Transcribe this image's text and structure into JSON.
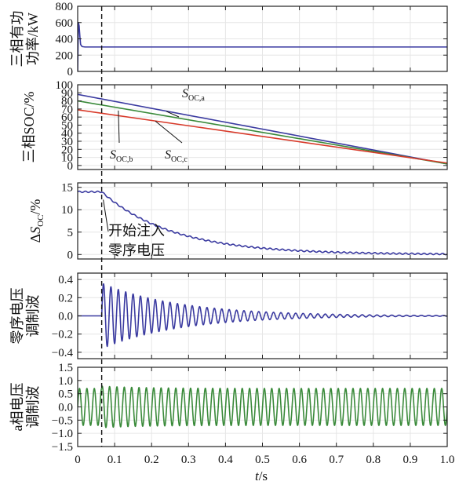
{
  "chart_data": [
    {
      "type": "line",
      "ylabel_lines": [
        "三相有功",
        "功率/kW"
      ],
      "xlim": [
        0,
        1
      ],
      "ylim": [
        0,
        800
      ],
      "yticks": [
        0,
        200,
        400,
        600,
        800
      ],
      "grid": true,
      "series": [
        {
          "color": "#3a3aa0",
          "x": [
            0,
            0.002,
            0.004,
            0.006,
            0.008,
            0.012,
            0.02,
            1.0
          ],
          "y": [
            0,
            600,
            560,
            430,
            330,
            305,
            300,
            300
          ]
        }
      ]
    },
    {
      "type": "line",
      "ylabel_lines": [
        "三相SOC/%"
      ],
      "xlim": [
        0,
        1
      ],
      "ylim": [
        -5,
        100
      ],
      "yticks": [
        0,
        10,
        20,
        30,
        40,
        50,
        60,
        70,
        80,
        90,
        100
      ],
      "grid": true,
      "series": [
        {
          "name": "S_OC,a",
          "color": "#3a3aa0",
          "x": [
            0,
            1
          ],
          "y": [
            88,
            2
          ]
        },
        {
          "name": "S_OC,b",
          "color": "#3a8a3a",
          "x": [
            0,
            1
          ],
          "y": [
            80,
            2
          ]
        },
        {
          "name": "S_OC,c",
          "color": "#d83a2a",
          "x": [
            0,
            1
          ],
          "y": [
            69,
            3
          ]
        }
      ],
      "annotations": [
        {
          "base": "S",
          "sub": "OC,a",
          "target_x": 0.24,
          "target_y": 67
        },
        {
          "base": "S",
          "sub": "OC,b",
          "target_x": 0.11,
          "target_y": 68
        },
        {
          "base": "S",
          "sub": "OC,c",
          "target_x": 0.21,
          "target_y": 55
        }
      ]
    },
    {
      "type": "line",
      "ylabel_lines": [
        "ΔSOC/%"
      ],
      "ylabel_parts": {
        "prefix": "Δ",
        "base": "S",
        "sub": "OC",
        "suffix": "/%"
      },
      "xlim": [
        0,
        1
      ],
      "ylim": [
        -1,
        16
      ],
      "yticks": [
        0,
        5,
        10,
        15
      ],
      "grid": true,
      "series": [
        {
          "color": "#3a3aa0",
          "inject_t": 0.065,
          "pre_level": 14,
          "decay_tau": 0.19,
          "final": 0,
          "ripple_amp": 0.15,
          "freq_hz": 60
        }
      ],
      "annotation_lines": [
        "开始注入",
        "零序电压"
      ]
    },
    {
      "type": "line",
      "ylabel_lines": [
        "零序电压",
        "调制波"
      ],
      "xlim": [
        0,
        1
      ],
      "ylim": [
        -0.47,
        0.47
      ],
      "yticks": [
        -0.4,
        -0.2,
        0,
        0.2,
        0.4
      ],
      "grid": true,
      "series": [
        {
          "color": "#3a3aa0",
          "inject_t": 0.065,
          "amp0": 0.36,
          "decay_tau": 0.21,
          "freq_hz": 50
        }
      ]
    },
    {
      "type": "line",
      "ylabel_lines": [
        "a相电压",
        "调制波"
      ],
      "xlim": [
        0,
        1
      ],
      "ylim": [
        -1.5,
        1.5
      ],
      "yticks": [
        -1.5,
        -1.0,
        -0.5,
        0,
        0.5,
        1.0,
        1.5
      ],
      "grid": true,
      "series": [
        {
          "color": "#3a8a3a",
          "inject_t": 0.065,
          "base_amp": 0.7,
          "extra_amp": 0.36,
          "decay_tau": 0.21,
          "freq_hz": 50
        }
      ]
    }
  ],
  "x_axis": {
    "label_italic": "t",
    "label_rest": "/s",
    "ticks": [
      "0",
      "0.1",
      "0.2",
      "0.3",
      "0.4",
      "0.5",
      "0.6",
      "0.7",
      "0.8",
      "0.9",
      "1.0"
    ],
    "tick_values": [
      0,
      0.1,
      0.2,
      0.3,
      0.4,
      0.5,
      0.6,
      0.7,
      0.8,
      0.9,
      1.0
    ]
  },
  "marker_t": 0.065,
  "colors": {
    "blue": "#3a3aa0",
    "green": "#3a8a3a",
    "red": "#d83a2a",
    "grid": "#e6e6e6",
    "axis": "#222222"
  }
}
